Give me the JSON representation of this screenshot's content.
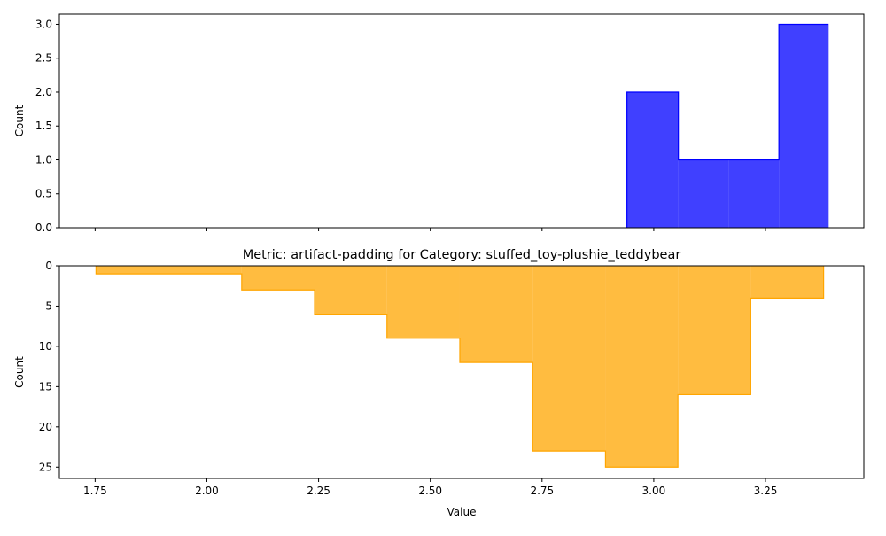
{
  "chart_data": [
    {
      "type": "histogram",
      "title": "",
      "xlabel": "",
      "ylabel": "Count",
      "xlim": [
        1.67,
        3.47
      ],
      "ylim": [
        0,
        3.15
      ],
      "y_inverted": false,
      "x_ticks": [
        1.75,
        2.0,
        2.25,
        2.5,
        2.75,
        3.0,
        3.25
      ],
      "x_tick_labels_visible": false,
      "y_ticks": [
        0.0,
        0.5,
        1.0,
        1.5,
        2.0,
        2.5,
        3.0
      ],
      "y_tick_labels": [
        "0.0",
        "0.5",
        "1.0",
        "1.5",
        "2.0",
        "2.5",
        "3.0"
      ],
      "color": "#0000ff",
      "fill_opacity": 0.75,
      "bins": [
        {
          "x0": 2.94,
          "x1": 3.055,
          "count": 2
        },
        {
          "x0": 3.055,
          "x1": 3.168,
          "count": 1
        },
        {
          "x0": 3.168,
          "x1": 3.28,
          "count": 1
        },
        {
          "x0": 3.28,
          "x1": 3.39,
          "count": 3
        }
      ]
    },
    {
      "type": "histogram",
      "title": "Metric: artifact-padding for Category: stuffed_toy-plushie_teddybear",
      "xlabel": "Value",
      "ylabel": "Count",
      "xlim": [
        1.67,
        3.47
      ],
      "ylim": [
        0,
        26.4
      ],
      "y_inverted": true,
      "x_ticks": [
        1.75,
        2.0,
        2.25,
        2.5,
        2.75,
        3.0,
        3.25
      ],
      "x_tick_labels": [
        "1.75",
        "2.00",
        "2.25",
        "2.50",
        "2.75",
        "3.00",
        "3.25"
      ],
      "x_tick_labels_visible": true,
      "y_ticks": [
        0,
        5,
        10,
        15,
        20,
        25
      ],
      "y_tick_labels": [
        "0",
        "5",
        "10",
        "15",
        "20",
        "25"
      ],
      "color": "#ffa500",
      "fill_opacity": 0.75,
      "bins": [
        {
          "x0": 1.752,
          "x1": 2.078,
          "count": 1
        },
        {
          "x0": 2.078,
          "x1": 2.241,
          "count": 3
        },
        {
          "x0": 2.241,
          "x1": 2.403,
          "count": 6
        },
        {
          "x0": 2.403,
          "x1": 2.566,
          "count": 9
        },
        {
          "x0": 2.566,
          "x1": 2.729,
          "count": 12
        },
        {
          "x0": 2.729,
          "x1": 2.892,
          "count": 23
        },
        {
          "x0": 2.892,
          "x1": 3.054,
          "count": 25
        },
        {
          "x0": 3.054,
          "x1": 3.217,
          "count": 16
        },
        {
          "x0": 3.217,
          "x1": 3.38,
          "count": 4
        }
      ]
    }
  ]
}
